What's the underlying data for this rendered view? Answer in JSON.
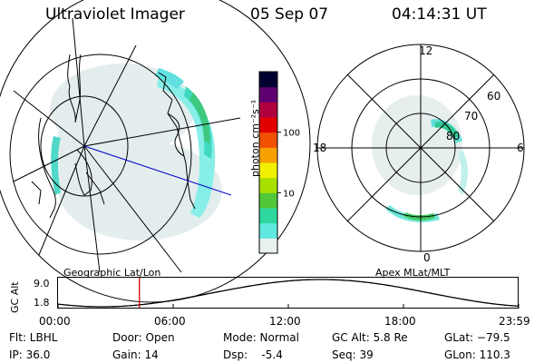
{
  "header": {
    "instrument": "Ultraviolet Imager",
    "date": "05 Sep 07",
    "time": "04:14:31 UT"
  },
  "colorbar": {
    "unit_label": "photon cm⁻²s⁻¹",
    "ticks": [
      "100",
      "10"
    ],
    "tick_values": [
      100,
      10
    ],
    "scale": "log",
    "colors": [
      "#e8f0f0",
      "#60e8e0",
      "#30d8a0",
      "#50c838",
      "#a8e000",
      "#f0f000",
      "#f8a000",
      "#f05000",
      "#e00000",
      "#b00040",
      "#600070",
      "#000030"
    ]
  },
  "left_panel": {
    "caption": "Geographic Lat/Lon"
  },
  "right_panel": {
    "caption": "Apex MLat/MLT",
    "mlt_labels": {
      "top": "12",
      "left": "18",
      "right": "6",
      "bottom": "0"
    },
    "lat_labels": [
      "60",
      "70",
      "80"
    ]
  },
  "altitude_plot": {
    "ylabel": "GC Alt",
    "yticks": [
      "9.0",
      "1.8"
    ],
    "xticks": [
      "00:00",
      "06:00",
      "12:00",
      "18:00",
      "23:59"
    ],
    "marker_time_h": 4.24
  },
  "info": {
    "flt": "Flt: LBHL",
    "ip": "IP: 36.0",
    "door": "Door: Open",
    "gain": "Gain: 14",
    "mode": "Mode: Normal",
    "dsp": "Dsp:    -5.4",
    "gcalt": "GC Alt: 5.8 Re",
    "seq": "Seq: 39",
    "glat": "GLat: −79.5",
    "glon": "GLon: 110.3"
  }
}
